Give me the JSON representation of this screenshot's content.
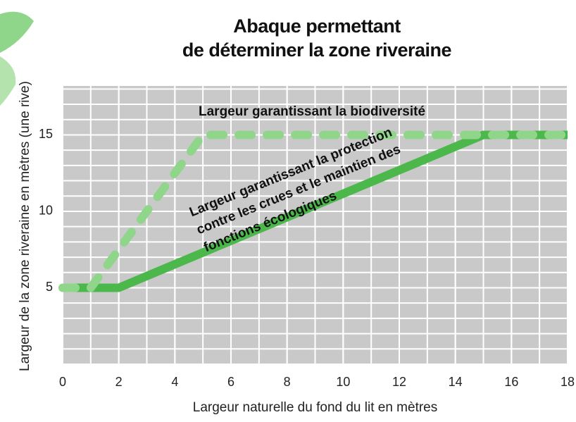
{
  "chart_data": {
    "type": "line",
    "title": "Abaque permettant\nde déterminer la zone riveraine",
    "x_label": "Largeur naturelle du fond du lit en mètres",
    "y_label": "Largeur de la zone riveraine en mètres (une rive)",
    "xlim": [
      0,
      18
    ],
    "xticks": [
      0,
      2,
      4,
      6,
      8,
      10,
      12,
      14,
      16,
      18
    ],
    "ylim": [
      0,
      18.2
    ],
    "yticks": [
      5,
      10,
      15
    ],
    "grid": true,
    "series": [
      {
        "name": "Largeur garantissant la protection\ncontre les crues et le maintien des\nfonctions écologiques",
        "color": "#4cb84c",
        "dashed": false,
        "x": [
          0,
          2,
          15,
          18
        ],
        "values": [
          5,
          5,
          15,
          15
        ]
      },
      {
        "name": "Largeur garantissant la biodiversité",
        "color": "#8fd68a",
        "dashed": true,
        "x": [
          0,
          1,
          5,
          18
        ],
        "values": [
          5,
          5,
          15,
          15
        ]
      }
    ]
  }
}
